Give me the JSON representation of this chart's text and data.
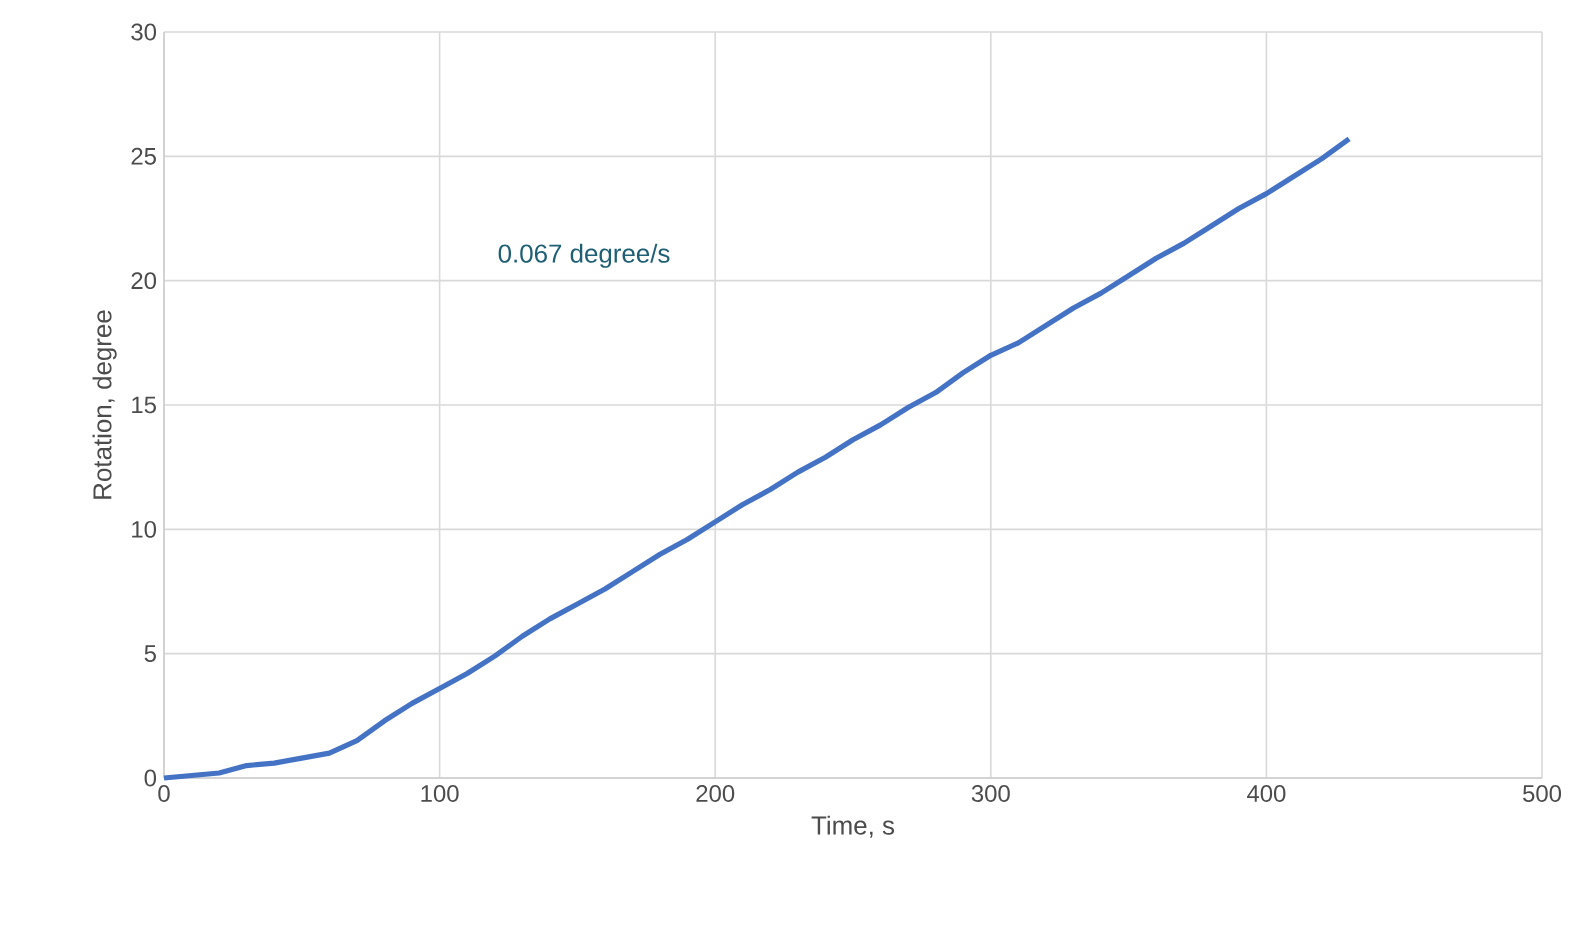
{
  "chart_data": {
    "type": "line",
    "xlabel": "Time,  s",
    "ylabel": "Rotation, degree",
    "annotations": [
      "0.067 degree/s"
    ],
    "x": [
      0,
      10,
      20,
      30,
      40,
      50,
      60,
      70,
      80,
      90,
      100,
      110,
      120,
      130,
      140,
      150,
      160,
      170,
      180,
      190,
      200,
      210,
      220,
      230,
      240,
      250,
      260,
      270,
      280,
      290,
      300,
      310,
      320,
      330,
      340,
      350,
      360,
      370,
      380,
      390,
      400,
      410,
      420,
      430
    ],
    "series": [
      {
        "color": "#4472c4",
        "values": [
          0,
          0.1,
          0.2,
          0.5,
          0.6,
          0.8,
          1.0,
          1.5,
          2.3,
          3.0,
          3.6,
          4.2,
          4.9,
          5.7,
          6.4,
          7.0,
          7.6,
          8.3,
          9.0,
          9.6,
          10.3,
          11.0,
          11.6,
          12.3,
          12.9,
          13.6,
          14.2,
          14.9,
          15.5,
          16.3,
          17.0,
          17.5,
          18.2,
          18.9,
          19.5,
          20.2,
          20.9,
          21.5,
          22.2,
          22.9,
          23.5,
          24.2,
          24.9,
          25.7
        ]
      }
    ],
    "xlim": [
      0,
      500
    ],
    "ylim": [
      0,
      30
    ],
    "xticks": [
      0,
      100,
      200,
      300,
      400,
      500
    ],
    "yticks": [
      0,
      5,
      10,
      15,
      20,
      25,
      30
    ],
    "grid": true,
    "marker": "none",
    "line_style": "solid"
  }
}
